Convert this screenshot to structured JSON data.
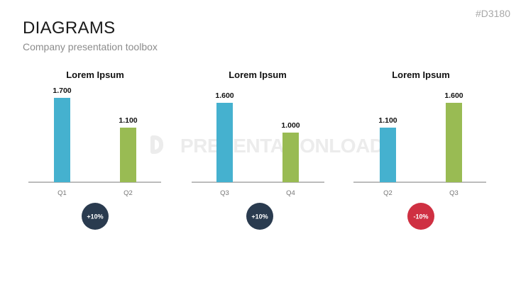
{
  "header": {
    "title": "DIAGRAMS",
    "subtitle": "Company presentation toolbox",
    "code": "#D3180"
  },
  "watermark": {
    "text": "PRESENTATIONLOAD",
    "icon": "presentationload-logo-icon"
  },
  "colors": {
    "bar_a": "#45b1cf",
    "bar_b": "#99bb53",
    "badge_positive": "#2a3b4f",
    "badge_negative": "#cf3042",
    "axis": "#7a7a7a"
  },
  "chart_data": [
    {
      "type": "bar",
      "title": "Lorem Ipsum",
      "categories": [
        "Q1",
        "Q2"
      ],
      "values": [
        1700,
        1100
      ],
      "value_labels": [
        "1.700",
        "1.100"
      ],
      "ylim": [
        0,
        1900
      ],
      "badge": "+10%"
    },
    {
      "type": "bar",
      "title": "Lorem Ipsum",
      "categories": [
        "Q3",
        "Q4"
      ],
      "values": [
        1600,
        1000
      ],
      "value_labels": [
        "1.600",
        "1.000"
      ],
      "ylim": [
        0,
        1900
      ],
      "badge": "+10%"
    },
    {
      "type": "bar",
      "title": "Lorem Ipsum",
      "categories": [
        "Q2",
        "Q3"
      ],
      "values": [
        1100,
        1600
      ],
      "value_labels": [
        "1.100",
        "1.600"
      ],
      "ylim": [
        0,
        1900
      ],
      "badge": "-10%"
    }
  ]
}
